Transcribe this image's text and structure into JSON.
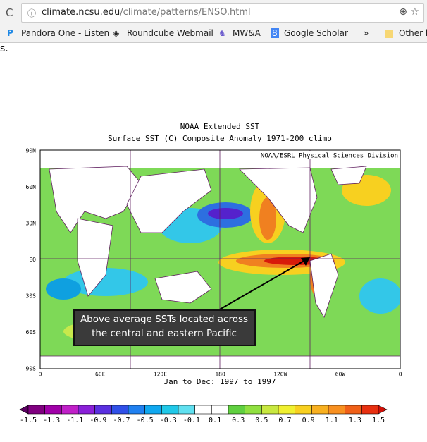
{
  "browser": {
    "url_host": "climate.ncsu.edu",
    "url_path": "/climate/patterns/ENSO.html",
    "bookmarks": [
      "Pandora One - Listen",
      "Roundcube Webmail",
      "MW&A",
      "Google Scholar"
    ],
    "more": "»",
    "other": "Other b"
  },
  "page": {
    "fragment": "s."
  },
  "map": {
    "title": "NOAA Extended SST",
    "subtitle": "Surface SST (C) Composite Anomaly 1971-200 climo",
    "credit": "NOAA/ESRL Physical Sciences Division",
    "lat_labels": [
      "90N",
      "60N",
      "30N",
      "EQ",
      "30S",
      "60S",
      "90S"
    ],
    "lon_labels": [
      "0",
      "60E",
      "120E",
      "180",
      "120W",
      "60W",
      "0"
    ],
    "period": "Jan to Dec: 1997 to 1997",
    "annotation": [
      "Above average SSTs located across",
      "the central and eastern Pacific"
    ],
    "colorbar_labels": [
      "-1.5",
      "-1.3",
      "-1.1",
      "-0.9",
      "-0.7",
      "-0.5",
      "-0.3",
      "-0.1",
      "0.1",
      "0.3",
      "0.5",
      "0.7",
      "0.9",
      "1.1",
      "1.3",
      "1.5"
    ]
  }
}
